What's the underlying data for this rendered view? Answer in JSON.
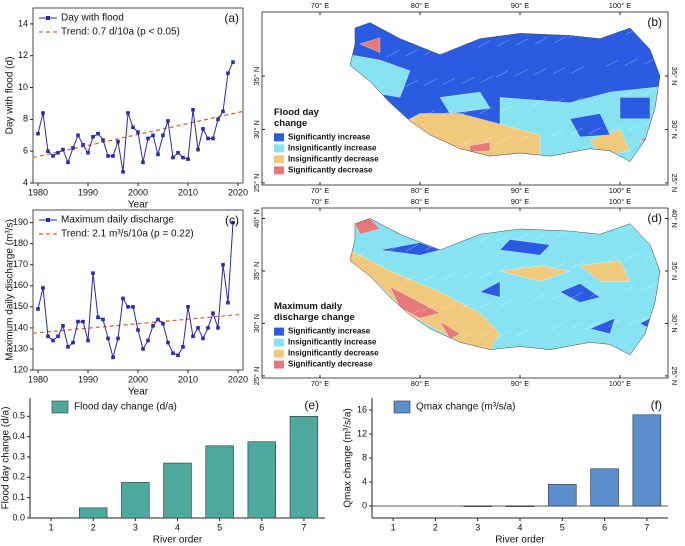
{
  "chart_data": [
    {
      "type": "line",
      "panel": "(a)",
      "x": [
        1980,
        1981,
        1982,
        1983,
        1984,
        1985,
        1986,
        1987,
        1988,
        1989,
        1990,
        1991,
        1992,
        1993,
        1994,
        1995,
        1996,
        1997,
        1998,
        1999,
        2000,
        2001,
        2002,
        2003,
        2004,
        2005,
        2006,
        2007,
        2008,
        2009,
        2010,
        2011,
        2012,
        2013,
        2014,
        2015,
        2016,
        2017,
        2018,
        2019
      ],
      "series": [
        {
          "name": "Day with flood",
          "color": "#2a2aa8",
          "values": [
            7.1,
            8.4,
            6.0,
            5.7,
            5.9,
            6.1,
            5.3,
            6.2,
            7.0,
            6.4,
            5.9,
            6.9,
            7.1,
            6.7,
            5.7,
            5.7,
            6.6,
            4.7,
            8.4,
            7.5,
            7.2,
            5.3,
            6.8,
            7.0,
            5.8,
            7.0,
            7.9,
            5.6,
            5.9,
            5.6,
            5.5,
            8.6,
            6.1,
            7.4,
            6.8,
            6.8,
            8.0,
            8.5,
            10.9,
            11.6
          ]
        }
      ],
      "trend": {
        "name": "Trend: 0.7 d/10a (p < 0.05)",
        "color": "#d9602b",
        "x": [
          1979,
          2021
        ],
        "values": [
          5.6,
          8.5
        ]
      },
      "xlabel": "Year",
      "ylabel": "Day with flood (d)",
      "xlim": [
        1979,
        2021
      ],
      "xticks": [
        1980,
        1990,
        2000,
        2010,
        2020
      ],
      "ylim": [
        4,
        15
      ],
      "yticks": [
        4,
        6,
        8,
        10,
        12,
        14
      ]
    },
    {
      "type": "map",
      "panel": "(b)",
      "legend_title": [
        "Flood day",
        "change"
      ],
      "legend": [
        {
          "name": "Significantly increase",
          "color": "#2a5be0"
        },
        {
          "name": "Insignificantly increase",
          "color": "#86e4f2"
        },
        {
          "name": "Insignificantly decrease",
          "color": "#f0c97c"
        },
        {
          "name": "Significantly decrease",
          "color": "#e6787a"
        }
      ],
      "xlim": [
        64.2,
        104.8
      ],
      "ylim": [
        24.8,
        41
      ],
      "lon_ticks": [
        {
          "value": 70,
          "label": "70° E"
        },
        {
          "value": 80,
          "label": "80° E"
        },
        {
          "value": 90,
          "label": "90° E"
        },
        {
          "value": 100,
          "label": "100° E"
        }
      ],
      "lat_ticks": [
        {
          "value": 25,
          "label": "25° N"
        },
        {
          "value": 30,
          "label": "30° N"
        },
        {
          "value": 35,
          "label": "35° N"
        }
      ]
    },
    {
      "type": "line",
      "panel": "(c)",
      "x": [
        1980,
        1981,
        1982,
        1983,
        1984,
        1985,
        1986,
        1987,
        1988,
        1989,
        1990,
        1991,
        1992,
        1993,
        1994,
        1995,
        1996,
        1997,
        1998,
        1999,
        2000,
        2001,
        2002,
        2003,
        2004,
        2005,
        2006,
        2007,
        2008,
        2009,
        2010,
        2011,
        2012,
        2013,
        2014,
        2015,
        2016,
        2017,
        2018,
        2019
      ],
      "series": [
        {
          "name": "Maximum daily discharge",
          "color": "#2a2aa8",
          "values": [
            149,
            159,
            136,
            134,
            136,
            141,
            131,
            133,
            143,
            143,
            134,
            166,
            145,
            144,
            135,
            126,
            135,
            154,
            150,
            150,
            139,
            130,
            134,
            141,
            144,
            142,
            133,
            128,
            127,
            131,
            150,
            136,
            140,
            135,
            140,
            147,
            140,
            170,
            152,
            190
          ]
        }
      ],
      "trend": {
        "name": "Trend: 2.1 m³/s/10a (p = 0.22)",
        "color": "#d9602b",
        "x": [
          1979,
          2021
        ],
        "values": [
          137.5,
          146.5
        ]
      },
      "xlabel": "Year",
      "ylabel": "Maximum daily discharge (m³/s)",
      "xlim": [
        1979,
        2021
      ],
      "xticks": [
        1980,
        1990,
        2000,
        2010,
        2020
      ],
      "ylim": [
        120,
        196
      ],
      "yticks": [
        120,
        130,
        140,
        150,
        160,
        170,
        180,
        190
      ]
    },
    {
      "type": "map",
      "panel": "(d)",
      "legend_title": [
        "Maximum daily",
        "discharge change"
      ],
      "legend": [
        {
          "name": "Significantly increase",
          "color": "#2a5be0"
        },
        {
          "name": "Insignificantly increase",
          "color": "#86e4f2"
        },
        {
          "name": "Insignificantly decrease",
          "color": "#f0c97c"
        },
        {
          "name": "Significantly decrease",
          "color": "#e6787a"
        }
      ],
      "xlim": [
        64.2,
        104.8
      ],
      "ylim": [
        24.8,
        41
      ],
      "lon_ticks": [
        {
          "value": 70,
          "label": "70° E"
        },
        {
          "value": 80,
          "label": "80° E"
        },
        {
          "value": 90,
          "label": "90° E"
        },
        {
          "value": 100,
          "label": "100° E"
        }
      ],
      "lat_ticks": [
        {
          "value": 25,
          "label": "25° N"
        },
        {
          "value": 30,
          "label": "30° N"
        },
        {
          "value": 35,
          "label": "35° N"
        },
        {
          "value": 40,
          "label": "40° N"
        }
      ]
    },
    {
      "type": "bar",
      "panel": "(e)",
      "categories": [
        "1",
        "2",
        "3",
        "4",
        "5",
        "6",
        "7"
      ],
      "series": [
        {
          "name": "Flood day change (d/a)",
          "color": "#4ea89b",
          "values": [
            0,
            0.05,
            0.175,
            0.27,
            0.355,
            0.375,
            0.5
          ]
        }
      ],
      "xlabel": "River order",
      "ylabel": "Flood day change (d/a)",
      "ylim": [
        0,
        0.59
      ],
      "yticks": [
        {
          "value": 0,
          "label": "0.0"
        },
        {
          "value": 0.1,
          "label": "0.1"
        },
        {
          "value": 0.2,
          "label": "0.2"
        },
        {
          "value": 0.3,
          "label": "0.3"
        },
        {
          "value": 0.4,
          "label": "0.4"
        },
        {
          "value": 0.5,
          "label": "0.5"
        }
      ]
    },
    {
      "type": "bar",
      "panel": "(f)",
      "categories": [
        "1",
        "2",
        "3",
        "4",
        "5",
        "6",
        "7"
      ],
      "series": [
        {
          "name": "Qmax change (m³/s/a)",
          "color": "#5b8fcb",
          "values": [
            0,
            0,
            -0.1,
            -0.1,
            3.6,
            6.2,
            15.2
          ]
        }
      ],
      "xlabel": "River order",
      "ylabel": "Qmax change (m³/s/a)",
      "ylim": [
        -2,
        18
      ],
      "yticks": [
        0,
        4,
        8,
        12,
        16
      ]
    }
  ]
}
